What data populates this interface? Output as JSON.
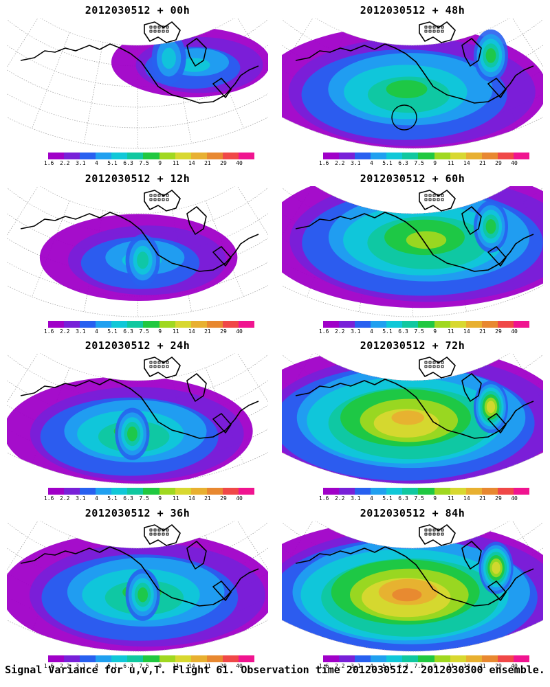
{
  "caption": "Signal Variance for u,v,T. Flight 61. Observation time 2012030512. 2012030300 ensemble.",
  "panels": [
    {
      "title": "2012030512 + 00h",
      "coverage": 0.35,
      "intensity": 0.35,
      "peak": [
        0.72,
        0.35
      ],
      "hot": [
        0.62,
        0.3
      ]
    },
    {
      "title": "2012030512 + 48h",
      "coverage": 0.85,
      "intensity": 0.55,
      "peak": [
        0.48,
        0.55
      ],
      "hot": [
        0.8,
        0.28
      ],
      "circle_marker": true
    },
    {
      "title": "2012030512 + 12h",
      "coverage": 0.5,
      "intensity": 0.42,
      "peak": [
        0.52,
        0.55
      ],
      "hot": [
        0.52,
        0.55
      ]
    },
    {
      "title": "2012030512 + 60h",
      "coverage": 0.98,
      "intensity": 0.6,
      "peak": [
        0.55,
        0.4
      ],
      "hot": [
        0.8,
        0.3
      ]
    },
    {
      "title": "2012030512 + 24h",
      "coverage": 0.7,
      "intensity": 0.5,
      "peak": [
        0.48,
        0.6
      ],
      "hot": [
        0.48,
        0.6
      ]
    },
    {
      "title": "2012030512 + 72h",
      "coverage": 1.0,
      "intensity": 0.75,
      "peak": [
        0.48,
        0.5
      ],
      "hot": [
        0.8,
        0.4
      ]
    },
    {
      "title": "2012030512 + 36h",
      "coverage": 0.8,
      "intensity": 0.55,
      "peak": [
        0.52,
        0.55
      ],
      "hot": [
        0.52,
        0.55
      ]
    },
    {
      "title": "2012030512 + 84h",
      "coverage": 1.0,
      "intensity": 0.82,
      "peak": [
        0.48,
        0.55
      ],
      "hot": [
        0.82,
        0.35
      ]
    }
  ],
  "colorbar": {
    "labels": [
      "1.6",
      "2.2",
      "3.1",
      "4",
      "5.1",
      "6.3",
      "7.5",
      "9",
      "11",
      "14",
      "21",
      "29",
      "40"
    ],
    "colors": [
      "#a000c8",
      "#7820d8",
      "#2860f0",
      "#20a0f0",
      "#10c8d8",
      "#10c8a0",
      "#20c840",
      "#a0d820",
      "#d8d830",
      "#e8b030",
      "#e88830",
      "#f04848",
      "#f01490"
    ]
  }
}
